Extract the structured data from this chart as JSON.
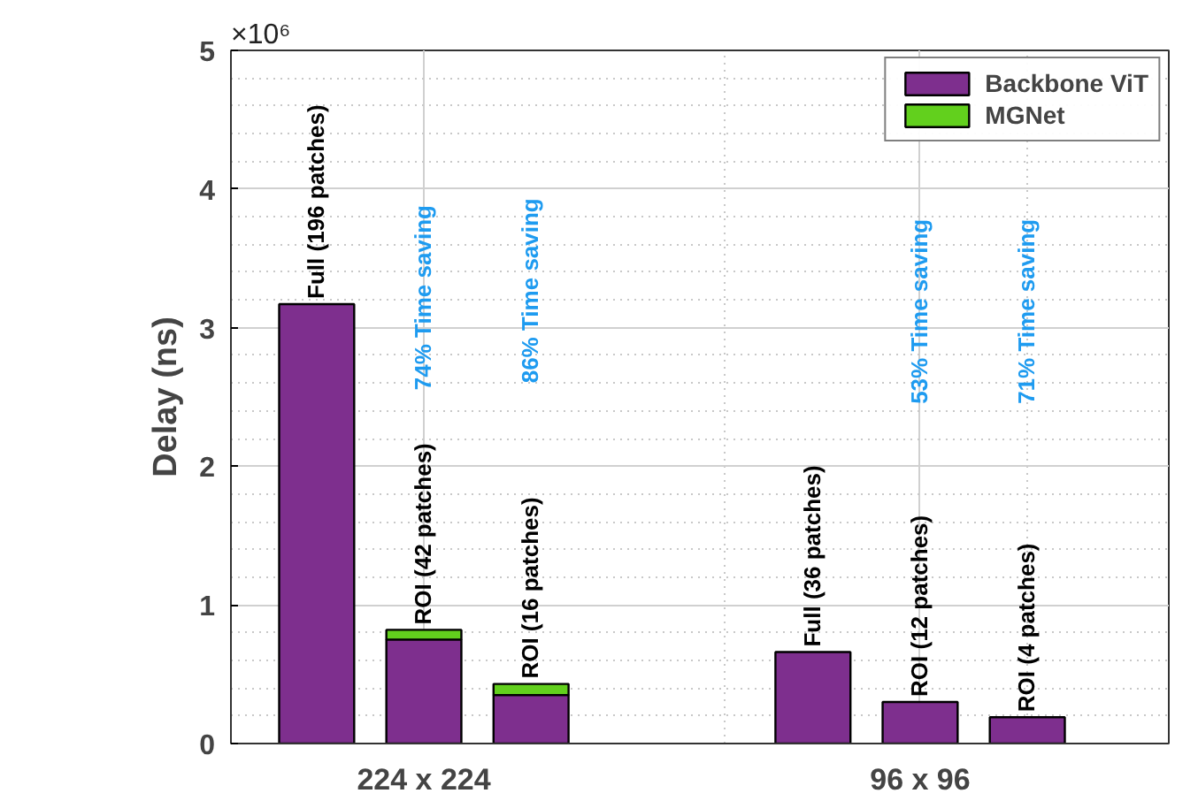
{
  "chart_data": {
    "type": "bar",
    "stacked": true,
    "ylabel": "Delay (ns)",
    "categories": [
      null,
      "224 x 224",
      null,
      null,
      "96 x 96",
      null
    ],
    "series": [
      {
        "name": "Backbone ViT",
        "color": "#7e2f8e",
        "values": [
          3.17,
          0.75,
          0.35,
          0.66,
          0.3,
          0.19
        ]
      },
      {
        "name": "MGNet",
        "color": "#62d01d",
        "values": [
          null,
          0.07,
          0.08,
          null,
          null,
          null
        ]
      }
    ],
    "ylim": [
      0,
      5
    ],
    "yticks": [
      0,
      1,
      2,
      3,
      4,
      5
    ],
    "annotations": [
      "×10⁶",
      "Full (196 patches)",
      "ROI (42 patches)",
      "ROI (16 patches)",
      "Full (36 patches)",
      "ROI (12 patches)",
      "ROI (4 patches)",
      "74% Time saving",
      "86% Time saving",
      "53% Time saving",
      "71% Time saving"
    ],
    "grid": true,
    "legend": "top right"
  }
}
